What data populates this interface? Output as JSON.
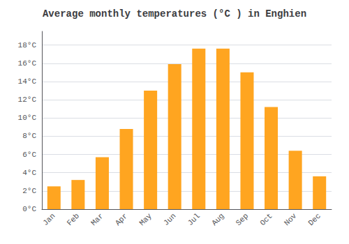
{
  "chart_data": {
    "type": "bar",
    "title": "Average monthly temperatures (°C ) in Enghien",
    "categories": [
      "Jan",
      "Feb",
      "Mar",
      "Apr",
      "May",
      "Jun",
      "Jul",
      "Aug",
      "Sep",
      "Oct",
      "Nov",
      "Dec"
    ],
    "values": [
      2.5,
      3.2,
      5.7,
      8.8,
      13.0,
      15.9,
      17.6,
      17.6,
      15.0,
      11.2,
      6.4,
      3.6
    ],
    "color": "#FFA520",
    "ylim": [
      0,
      19.5
    ],
    "yticks": [
      {
        "value": 0,
        "label": "0°C"
      },
      {
        "value": 2,
        "label": "2°C"
      },
      {
        "value": 4,
        "label": "4°C"
      },
      {
        "value": 6,
        "label": "6°C"
      },
      {
        "value": 8,
        "label": "8°C"
      },
      {
        "value": 10,
        "label": "10°C"
      },
      {
        "value": 12,
        "label": "12°C"
      },
      {
        "value": 14,
        "label": "14°C"
      },
      {
        "value": 16,
        "label": "16°C"
      },
      {
        "value": 18,
        "label": "18°C"
      }
    ],
    "grid": true
  }
}
